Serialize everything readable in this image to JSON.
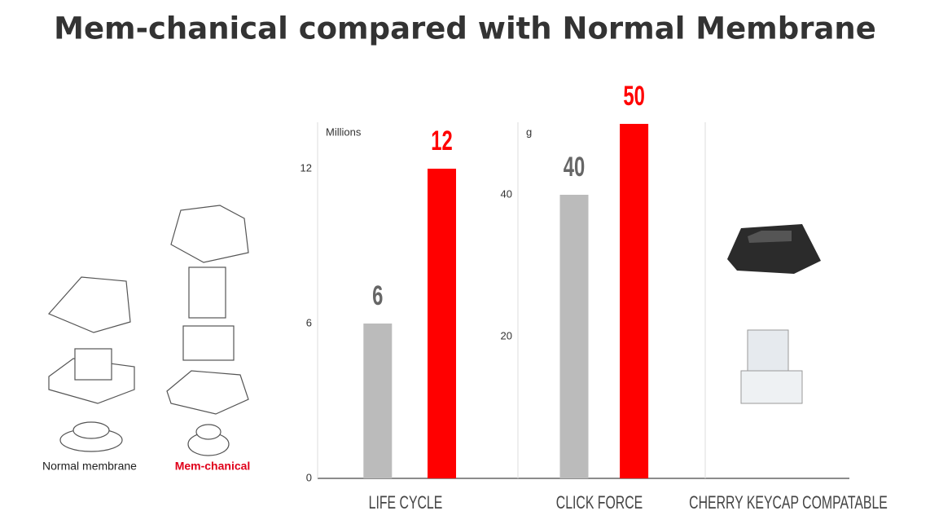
{
  "title": "Mem-chanical compared with Normal Membrane",
  "illustrations": {
    "left_label": "Normal membrane",
    "right_label": "Mem-chanical",
    "right_panel": "CHERRY KEYCAP COMPATABLE"
  },
  "chart_data": [
    {
      "type": "bar",
      "x_label": "LIFE CYCLE",
      "unit": "Millions",
      "categories": [
        null,
        null
      ],
      "values": [
        6,
        12
      ],
      "colors": [
        "#bbbbbb",
        "#ff0000"
      ],
      "label_colors": [
        "#666666",
        "#ff0000"
      ],
      "ylim": [
        0,
        13.8
      ],
      "yticks": [
        0,
        6,
        12
      ]
    },
    {
      "type": "bar",
      "x_label": "CLICK FORCE",
      "unit": "g",
      "categories": [
        null,
        null
      ],
      "values": [
        40,
        50
      ],
      "colors": [
        "#bbbbbb",
        "#ff0000"
      ],
      "label_colors": [
        "#666666",
        "#ff0000"
      ],
      "ylim": [
        0,
        50
      ],
      "yticks": [
        20,
        40
      ]
    }
  ]
}
